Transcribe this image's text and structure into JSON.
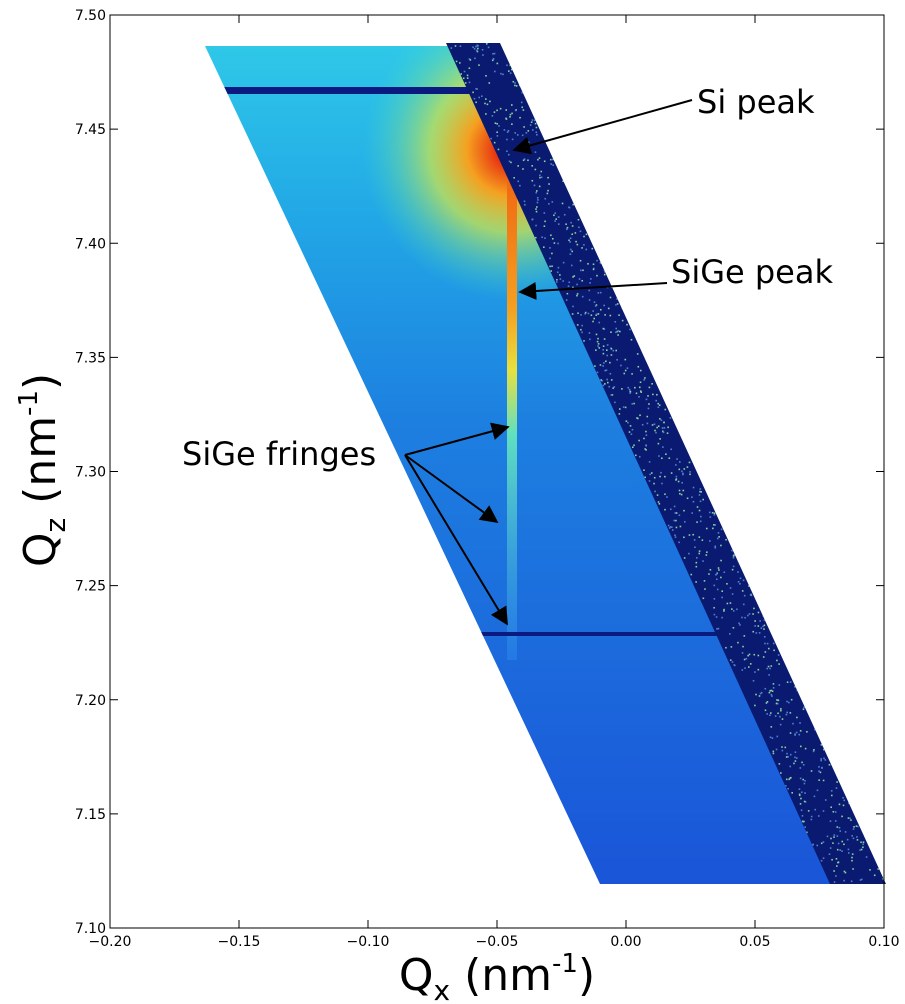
{
  "chart_data": {
    "type": "heatmap",
    "x_label": [
      "Q",
      "x",
      " (nm",
      "-1",
      ")"
    ],
    "y_label": [
      "Q",
      "z",
      " (nm",
      "-1",
      ")"
    ],
    "xlim": [
      -0.2,
      0.1
    ],
    "xticks": [
      {
        "value": -0.2,
        "label": "−0.20"
      },
      {
        "value": -0.15,
        "label": "−0.15"
      },
      {
        "value": -0.1,
        "label": "−0.10"
      },
      {
        "value": -0.05,
        "label": "−0.05"
      },
      {
        "value": 0,
        "label": "0.00"
      },
      0.05,
      {
        "value": 0.1,
        "label": "0.10"
      }
    ],
    "ylim": [
      7.1,
      7.5
    ],
    "yticks": [
      {
        "value": 7.1,
        "label": "7.10"
      },
      7.15,
      {
        "value": 7.2,
        "label": "7.20"
      },
      7.25,
      {
        "value": 7.3,
        "label": "7.30"
      },
      7.35,
      {
        "value": 7.4,
        "label": "7.40"
      },
      7.45,
      {
        "value": 7.5,
        "label": "7.50"
      }
    ],
    "annotations": [
      "Si peak",
      "SiGe peak",
      "SiGe fringes"
    ]
  }
}
